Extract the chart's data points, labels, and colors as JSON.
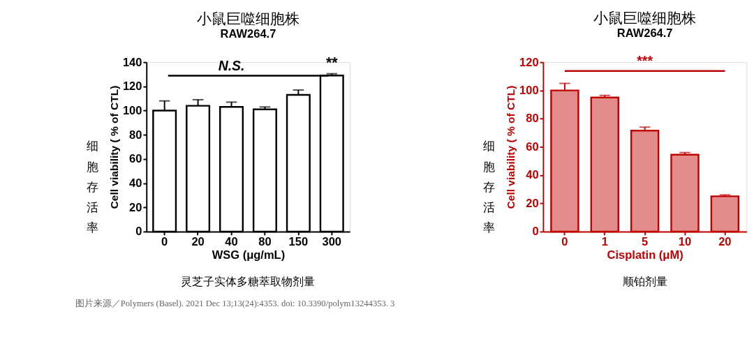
{
  "chart_data": [
    {
      "type": "bar",
      "title": "小鼠巨噬细胞株",
      "subtitle": "RAW264.7",
      "xlabel": "WSG (μg/mL)",
      "ylabel": "Cell viability ( % of CTL)",
      "categories": [
        "0",
        "20",
        "40",
        "80",
        "150",
        "300"
      ],
      "series": [
        {
          "color": "#000000",
          "values": [
            100,
            104,
            103,
            101,
            113,
            129
          ],
          "errors": [
            8,
            5,
            4,
            2,
            4,
            1.5
          ]
        }
      ],
      "ylim": [
        0,
        140
      ],
      "yticks": [
        0,
        20,
        40,
        60,
        80,
        100,
        120,
        140
      ],
      "grid": false,
      "annotations": [
        "细胞存活率",
        "N.S.",
        "**",
        "灵芝子实体多糖萃取物剂量",
        "图片来源／Polymers (Basel). 2021 Dec 13;13(24):4353. doi: 10.3390/polym13244353. 3"
      ]
    },
    {
      "type": "bar",
      "title": "小鼠巨噬细胞株",
      "subtitle": "RAW264.7",
      "xlabel": "Cisplatin (μM)",
      "ylabel": "Cell viability ( % of CTL)",
      "categories": [
        "0",
        "1",
        "5",
        "10",
        "20"
      ],
      "series": [
        {
          "color": "#c00000",
          "values": [
            100,
            95,
            71.5,
            54.5,
            25
          ],
          "errors": [
            5,
            1.5,
            2.5,
            1.5,
            1
          ]
        }
      ],
      "ylim": [
        0,
        120
      ],
      "yticks": [
        0,
        20,
        40,
        60,
        80,
        100,
        120
      ],
      "grid": false,
      "annotations": [
        "细胞存活率",
        "***",
        "顺铂剂量"
      ]
    }
  ]
}
